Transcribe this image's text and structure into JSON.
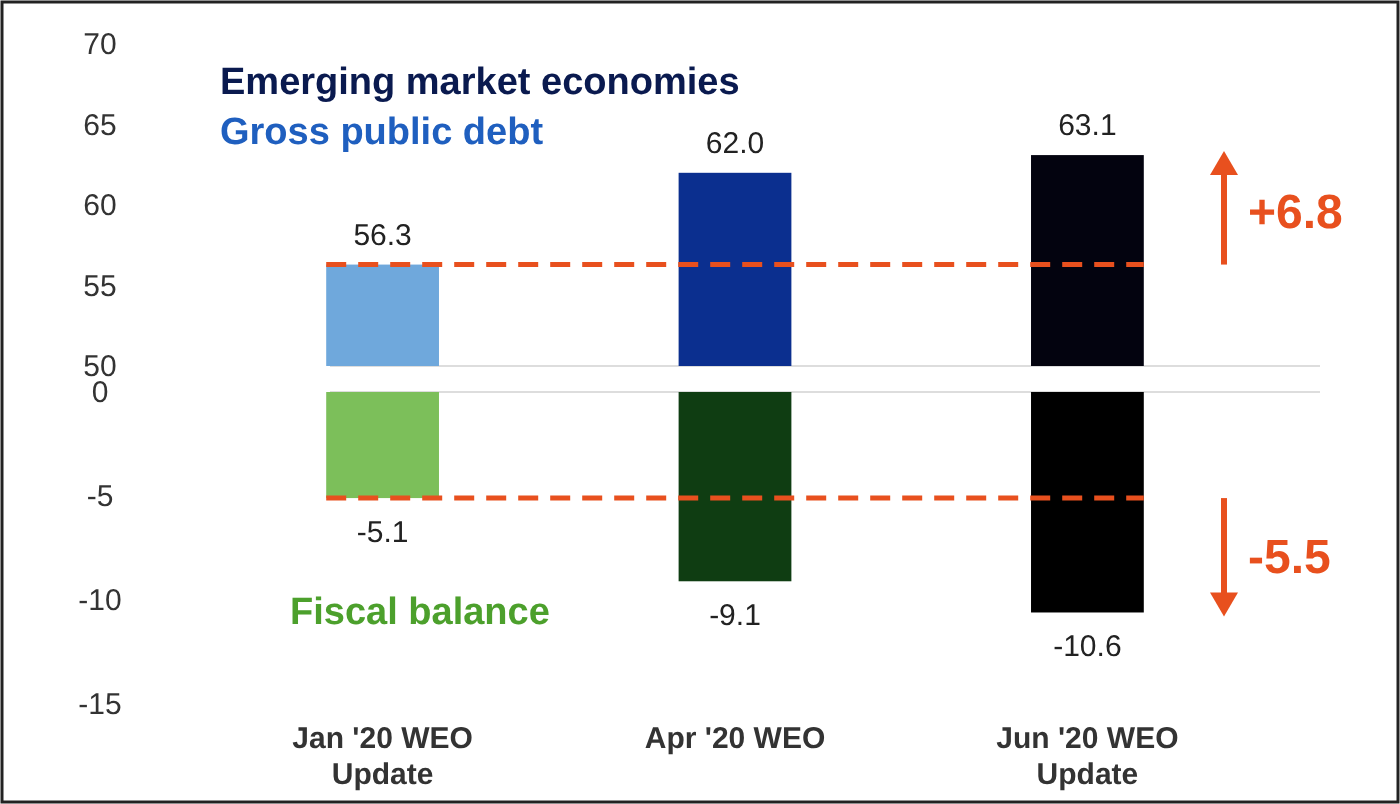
{
  "chart_data": [
    {
      "type": "bar",
      "title": "Emerging market economies",
      "subtitle": "Gross public debt",
      "values": [
        56.3,
        62.0,
        63.1
      ],
      "colors": [
        "#6fa8dc",
        "#0b2f8f",
        "#03030f"
      ],
      "value_labels": [
        "56.3",
        "62.0",
        "63.1"
      ],
      "ylim": [
        50,
        70
      ],
      "yticks": [
        50,
        55,
        60,
        65,
        70
      ],
      "tick_labels": "y",
      "ref_lines": [
        {
          "axis": "y",
          "value": 56.3,
          "color": "#e8501e",
          "line_style": "dashed"
        }
      ],
      "annotations": [
        "+6.8"
      ]
    },
    {
      "type": "bar",
      "title": "Fiscal balance",
      "categories": [
        "Jan '20 WEO Update",
        "Apr '20 WEO",
        "Jun '20 WEO Update"
      ],
      "values": [
        -5.1,
        -9.1,
        -10.6
      ],
      "colors": [
        "#7cbf5a",
        "#0f3d12",
        "#000000"
      ],
      "value_labels": [
        "-5.1",
        "-9.1",
        "-10.6"
      ],
      "ylim": [
        -15,
        0
      ],
      "yticks": [
        0,
        -5,
        -10,
        -15
      ],
      "ref_lines": [
        {
          "axis": "y",
          "value": -5.1,
          "color": "#e8501e",
          "line_style": "dashed"
        }
      ],
      "annotations": [
        "-5.5"
      ]
    }
  ]
}
